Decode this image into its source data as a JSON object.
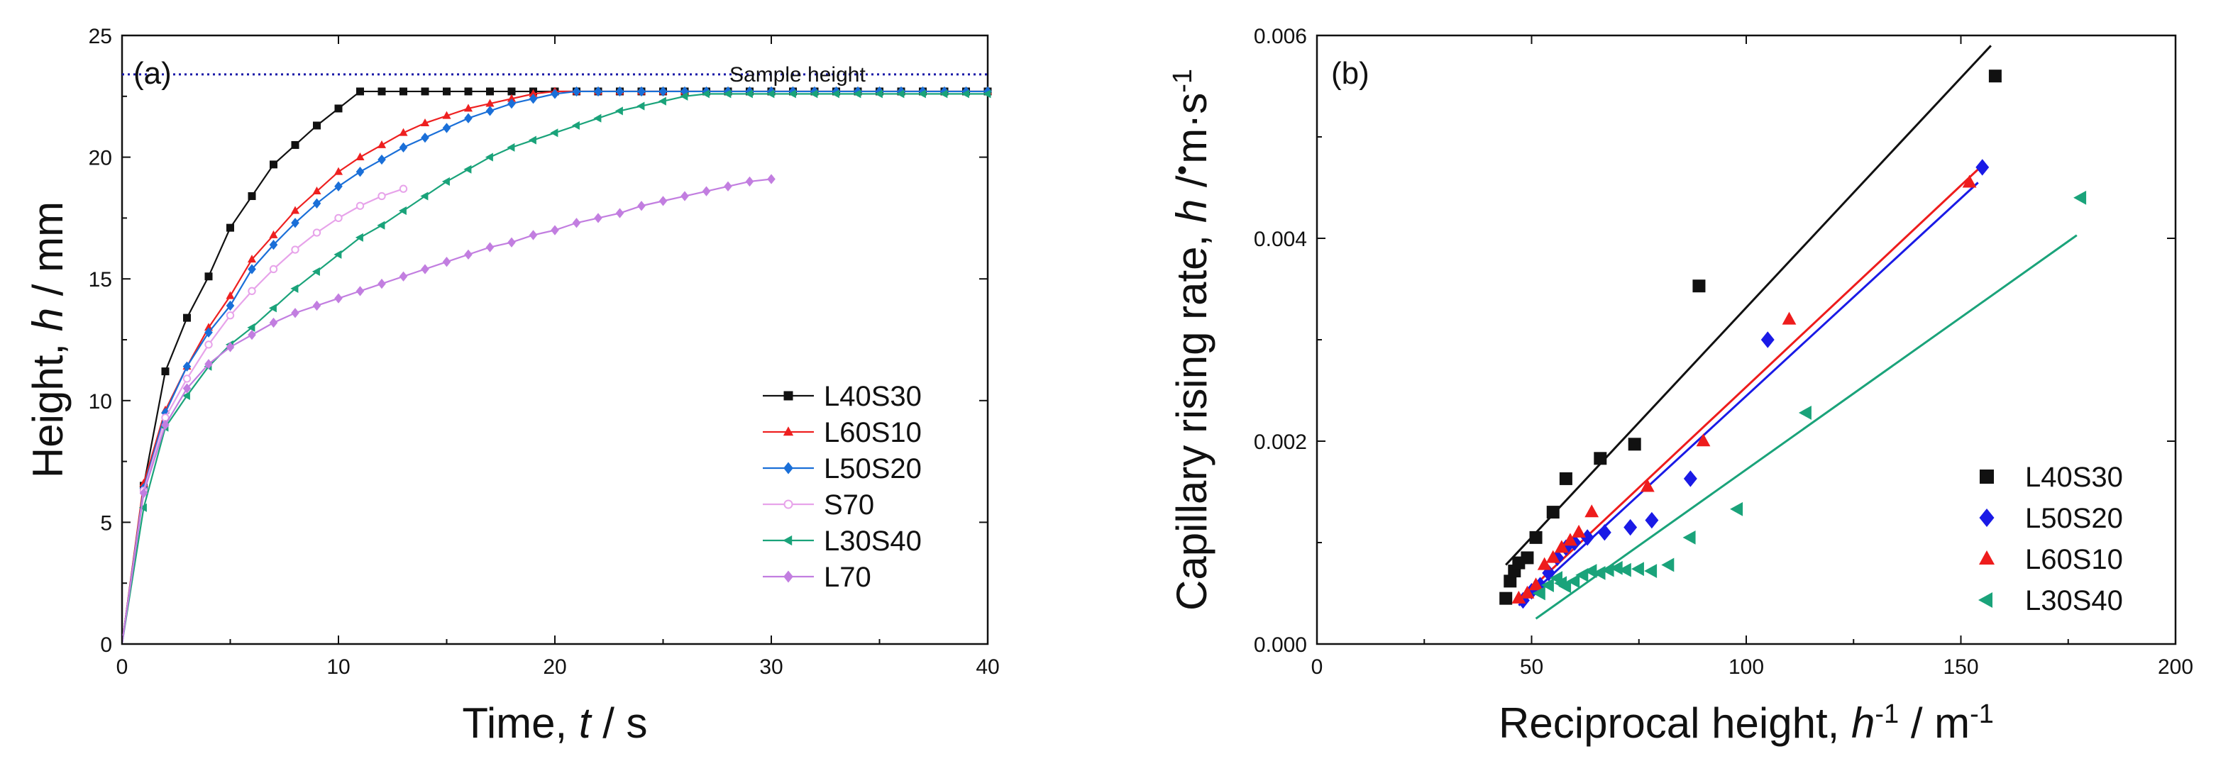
{
  "chart_data": [
    {
      "panel_label": "(a)",
      "type": "line",
      "title": "",
      "xlabel_prefix": "Time, ",
      "xlabel_var": "t",
      "xlabel_suffix": " / s",
      "ylabel_prefix": "Height, ",
      "ylabel_var": "h",
      "ylabel_suffix": " / mm",
      "xlim": [
        0,
        40
      ],
      "ylim": [
        0,
        25
      ],
      "xticks": [
        0,
        10,
        20,
        30,
        40
      ],
      "xtick_labels": [
        "0",
        "10",
        "20",
        "30",
        "40"
      ],
      "yticks": [
        0,
        5,
        10,
        15,
        20,
        25
      ],
      "ytick_labels": [
        "0",
        "5",
        "10",
        "15",
        "20",
        "25"
      ],
      "grid": false,
      "legend_position": "bottom-right",
      "reference_line": {
        "y": 23.4,
        "label": "Sample height",
        "color": "#1a1aa8"
      },
      "series": [
        {
          "name": "L40S30",
          "color": "#111111",
          "marker": "square",
          "x": [
            0,
            1,
            2,
            3,
            4,
            5,
            6,
            7,
            8,
            9,
            10,
            11,
            12,
            13,
            14,
            15,
            16,
            17,
            18,
            19,
            20,
            21,
            22,
            23,
            24,
            25,
            26,
            27,
            28,
            29,
            30,
            31,
            32,
            33,
            34,
            35,
            36,
            37,
            38,
            39,
            40
          ],
          "y": [
            0,
            6.5,
            11.2,
            13.4,
            15.1,
            17.1,
            18.4,
            19.7,
            20.5,
            21.3,
            22.0,
            22.7,
            22.7,
            22.7,
            22.7,
            22.7,
            22.7,
            22.7,
            22.7,
            22.7,
            22.7,
            22.7,
            22.7,
            22.7,
            22.7,
            22.7,
            22.7,
            22.7,
            22.7,
            22.7,
            22.7,
            22.7,
            22.7,
            22.7,
            22.7,
            22.7,
            22.7,
            22.7,
            22.7,
            22.7,
            22.7
          ]
        },
        {
          "name": "L60S10",
          "color": "#ee2020",
          "marker": "triangle-up",
          "x": [
            0,
            1,
            2,
            3,
            4,
            5,
            6,
            7,
            8,
            9,
            10,
            11,
            12,
            13,
            14,
            15,
            16,
            17,
            18,
            19,
            20,
            21,
            22,
            23,
            24,
            25,
            26,
            27,
            28,
            29,
            30,
            31,
            32,
            33,
            34,
            35,
            36,
            37,
            38,
            39,
            40
          ],
          "y": [
            0,
            6.6,
            9.6,
            11.4,
            13.0,
            14.3,
            15.8,
            16.8,
            17.8,
            18.6,
            19.4,
            20.0,
            20.5,
            21.0,
            21.4,
            21.7,
            22.0,
            22.2,
            22.4,
            22.6,
            22.7,
            22.7,
            22.7,
            22.7,
            22.7,
            22.7,
            22.7,
            22.7,
            22.7,
            22.7,
            22.7,
            22.7,
            22.7,
            22.7,
            22.7,
            22.7,
            22.7,
            22.7,
            22.7,
            22.7,
            22.7
          ]
        },
        {
          "name": "L50S20",
          "color": "#1a6fd8",
          "marker": "diamond",
          "x": [
            0,
            1,
            2,
            3,
            4,
            5,
            6,
            7,
            8,
            9,
            10,
            11,
            12,
            13,
            14,
            15,
            16,
            17,
            18,
            19,
            20,
            21,
            22,
            23,
            24,
            25,
            26,
            27,
            28,
            29,
            30,
            31,
            32,
            33,
            34,
            35,
            36,
            37,
            38,
            39,
            40
          ],
          "y": [
            0,
            6.4,
            9.5,
            11.4,
            12.8,
            13.9,
            15.4,
            16.4,
            17.3,
            18.1,
            18.8,
            19.4,
            19.9,
            20.4,
            20.8,
            21.2,
            21.6,
            21.9,
            22.2,
            22.4,
            22.6,
            22.7,
            22.7,
            22.7,
            22.7,
            22.7,
            22.7,
            22.7,
            22.7,
            22.7,
            22.7,
            22.7,
            22.7,
            22.7,
            22.7,
            22.7,
            22.7,
            22.7,
            22.7,
            22.7,
            22.7
          ]
        },
        {
          "name": "S70",
          "color": "#e7a3ea",
          "marker": "circle-open",
          "x": [
            0,
            1,
            2,
            3,
            4,
            5,
            6,
            7,
            8,
            9,
            10,
            11,
            12,
            13
          ],
          "y": [
            0,
            6.3,
            9.3,
            10.9,
            12.3,
            13.5,
            14.5,
            15.4,
            16.2,
            16.9,
            17.5,
            18.0,
            18.4,
            18.7
          ]
        },
        {
          "name": "L30S40",
          "color": "#1aa37a",
          "marker": "triangle-left",
          "x": [
            0,
            1,
            2,
            3,
            4,
            5,
            6,
            7,
            8,
            9,
            10,
            11,
            12,
            13,
            14,
            15,
            16,
            17,
            18,
            19,
            20,
            21,
            22,
            23,
            24,
            25,
            26,
            27,
            28,
            29,
            30,
            31,
            32,
            33,
            34,
            35,
            36,
            37,
            38,
            39,
            40
          ],
          "y": [
            0,
            5.6,
            8.9,
            10.2,
            11.4,
            12.3,
            13.0,
            13.8,
            14.6,
            15.3,
            16.0,
            16.7,
            17.2,
            17.8,
            18.4,
            19.0,
            19.5,
            20.0,
            20.4,
            20.7,
            21.0,
            21.3,
            21.6,
            21.9,
            22.1,
            22.3,
            22.5,
            22.6,
            22.6,
            22.6,
            22.6,
            22.6,
            22.6,
            22.6,
            22.6,
            22.6,
            22.6,
            22.6,
            22.6,
            22.6,
            22.6
          ]
        },
        {
          "name": "L70",
          "color": "#c27ee0",
          "marker": "diamond",
          "x": [
            0,
            1,
            2,
            3,
            4,
            5,
            6,
            7,
            8,
            9,
            10,
            11,
            12,
            13,
            14,
            15,
            16,
            17,
            18,
            19,
            20,
            21,
            22,
            23,
            24,
            25,
            26,
            27,
            28,
            29,
            30
          ],
          "y": [
            0,
            6.2,
            9.0,
            10.5,
            11.5,
            12.2,
            12.7,
            13.2,
            13.6,
            13.9,
            14.2,
            14.5,
            14.8,
            15.1,
            15.4,
            15.7,
            16.0,
            16.3,
            16.5,
            16.8,
            17.0,
            17.3,
            17.5,
            17.7,
            18.0,
            18.2,
            18.4,
            18.6,
            18.8,
            19.0,
            19.1
          ]
        }
      ]
    },
    {
      "panel_label": "(b)",
      "type": "scatter",
      "title": "",
      "xlabel_prefix": "Reciprocal height, ",
      "xlabel_var": "h",
      "xlabel_exp1": "-1",
      "xlabel_mid": " / m",
      "xlabel_exp2": "-1",
      "ylabel_prefix": "Capillary rising rate, ",
      "ylabel_var": "h",
      "ylabel_suffix": " / m·s",
      "ylabel_exp": "-1",
      "xlim": [
        0,
        200
      ],
      "ylim": [
        0,
        0.006
      ],
      "xticks": [
        0,
        50,
        100,
        150,
        200
      ],
      "xtick_labels": [
        "0",
        "50",
        "100",
        "150",
        "200"
      ],
      "yticks": [
        0,
        0.002,
        0.004,
        0.006
      ],
      "ytick_labels": [
        "0.000",
        "0.002",
        "0.004",
        "0.006"
      ],
      "grid": false,
      "legend_position": "bottom-right",
      "series": [
        {
          "name": "L40S30",
          "color": "#111111",
          "marker": "square",
          "x": [
            44,
            45,
            46,
            47,
            49,
            51,
            55,
            58,
            66,
            74,
            89,
            158
          ],
          "y": [
            0.00045,
            0.00062,
            0.00072,
            0.0008,
            0.00085,
            0.00105,
            0.0013,
            0.00163,
            0.00183,
            0.00197,
            0.00353,
            0.0056
          ],
          "fit": {
            "x": [
              44,
              157
            ],
            "y": [
              0.00078,
              0.0059
            ]
          }
        },
        {
          "name": "L50S20",
          "color": "#1a1ae6",
          "marker": "diamond",
          "x": [
            48,
            50,
            52,
            54,
            56,
            58,
            60,
            63,
            67,
            73,
            78,
            87,
            105,
            155
          ],
          "y": [
            0.00043,
            0.00052,
            0.00058,
            0.0007,
            0.00085,
            0.00095,
            0.001,
            0.00105,
            0.0011,
            0.00115,
            0.00122,
            0.00163,
            0.003,
            0.0047
          ],
          "fit": {
            "x": [
              47,
              154
            ],
            "y": [
              0.00038,
              0.00455
            ]
          }
        },
        {
          "name": "L60S10",
          "color": "#ee1c1c",
          "marker": "triangle-up",
          "x": [
            47,
            49,
            51,
            53,
            55,
            57,
            59,
            61,
            64,
            77,
            90,
            110,
            152
          ],
          "y": [
            0.00045,
            0.0005,
            0.00058,
            0.00078,
            0.00085,
            0.00095,
            0.00102,
            0.0011,
            0.0013,
            0.00155,
            0.002,
            0.0032,
            0.00455
          ],
          "fit": {
            "x": [
              47,
              154
            ],
            "y": [
              0.00043,
              0.00468
            ]
          }
        },
        {
          "name": "L30S40",
          "color": "#1aa37a",
          "marker": "triangle-left",
          "x": [
            52,
            54,
            56,
            57,
            58,
            60,
            62,
            64,
            66,
            68,
            70,
            72,
            75,
            78,
            82,
            87,
            98,
            114,
            178
          ],
          "y": [
            0.0005,
            0.00058,
            0.00065,
            0.0006,
            0.00057,
            0.00062,
            0.00068,
            0.00072,
            0.0007,
            0.00073,
            0.00075,
            0.00073,
            0.00074,
            0.00072,
            0.00078,
            0.00105,
            0.00133,
            0.00228,
            0.0044
          ],
          "fit": {
            "x": [
              51,
              177
            ],
            "y": [
              0.00025,
              0.00403
            ]
          }
        }
      ]
    }
  ]
}
